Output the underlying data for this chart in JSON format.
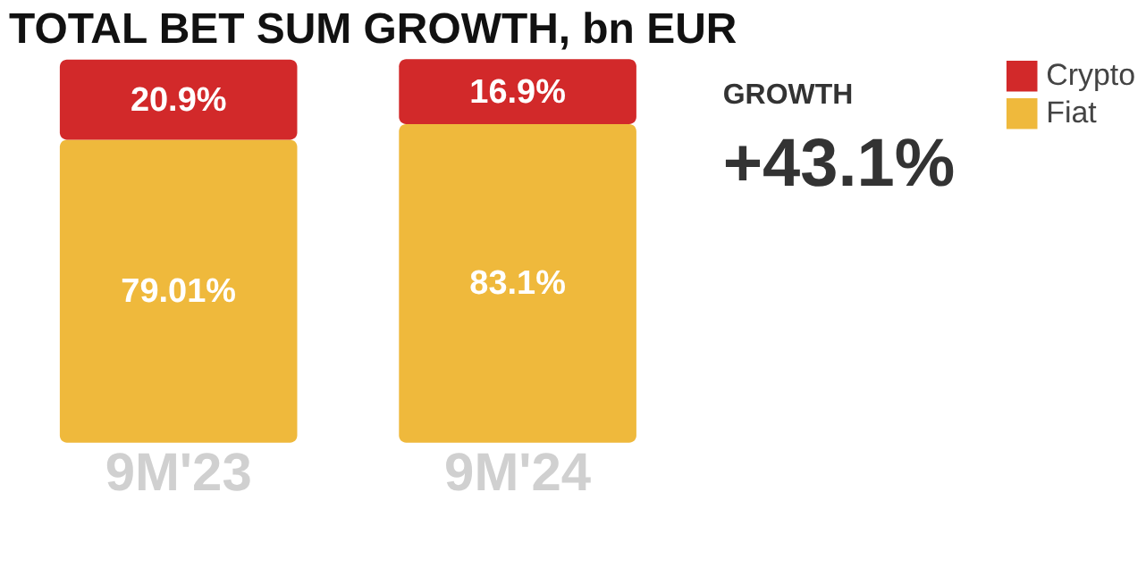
{
  "chart_data": {
    "type": "bar",
    "title": "TOTAL BET SUM GROWTH, bn EUR",
    "categories": [
      "9M'23",
      "9M'24"
    ],
    "stacked": true,
    "legend": "right",
    "tick_labels": "x",
    "annotations": [
      "GROWTH",
      "+43.1%"
    ],
    "series": [
      {
        "name": "Fiat",
        "color": "#efb93c",
        "values": [
          79.01,
          83.1
        ],
        "value_labels": [
          "79.01%",
          "83.1%"
        ]
      },
      {
        "name": "Crypto",
        "color": "#d2292a",
        "values": [
          20.9,
          16.9
        ],
        "value_labels": [
          "20.9%",
          "16.9%"
        ]
      }
    ]
  }
}
